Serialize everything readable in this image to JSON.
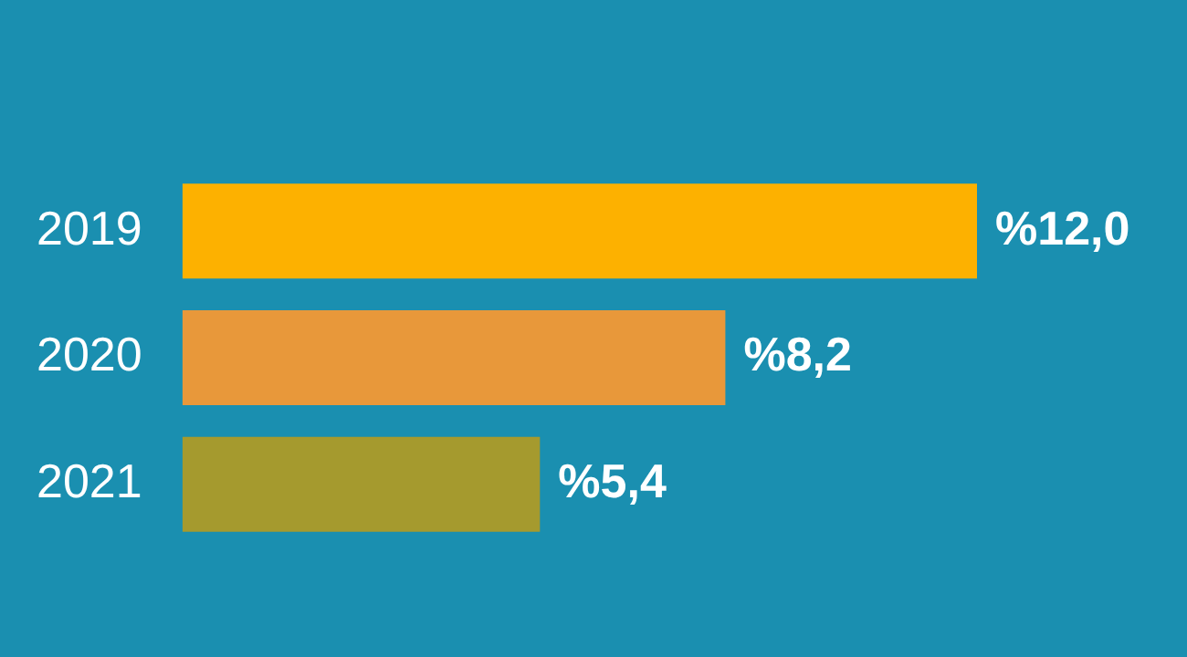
{
  "chart_data": {
    "type": "bar",
    "orientation": "horizontal",
    "categories": [
      "2019",
      "2020",
      "2021"
    ],
    "values": [
      12.0,
      8.2,
      5.4
    ],
    "colors": [
      "#fdb100",
      "#e8983a",
      "#a59a2e"
    ],
    "value_labels": [
      "%12,0",
      "%8,2",
      "%5,4"
    ],
    "legend": false
  }
}
